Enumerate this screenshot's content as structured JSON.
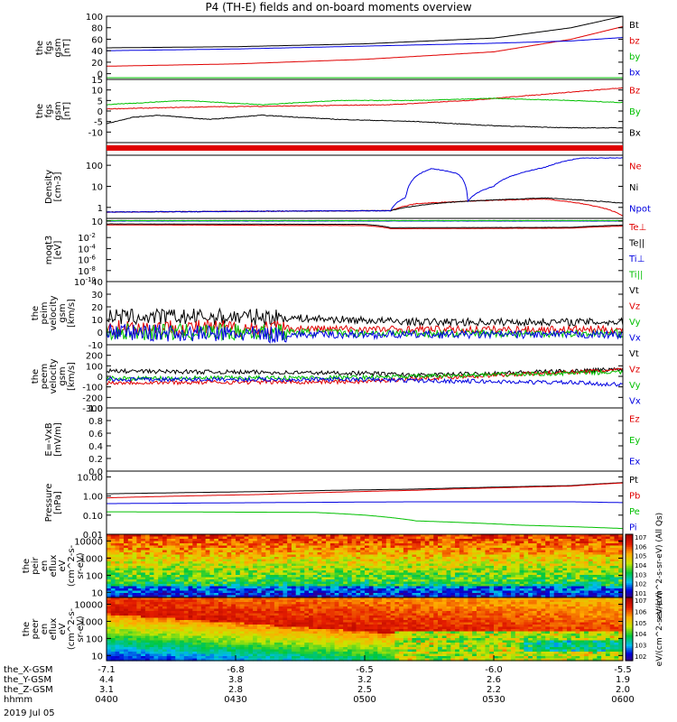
{
  "figure": {
    "title": "P4 (TH-E) fields and on-board moments overview",
    "date_label": "2019 Jul 05"
  },
  "colors": {
    "black": "#000000",
    "red": "#e00000",
    "green": "#00c000",
    "blue": "#0000e0"
  },
  "chart_data": [
    {
      "id": "fgs_gsm",
      "type": "line",
      "ylabel": [
        "the",
        "fgs",
        "gsm",
        "[nT]"
      ],
      "ylim": [
        -10,
        100
      ],
      "yticks": [
        "100",
        "80",
        "60",
        "40",
        "20",
        "0"
      ],
      "ytick_values": [
        100,
        80,
        60,
        40,
        20,
        0
      ],
      "series": [
        {
          "name": "Bt",
          "color": "black",
          "x": [
            0,
            0.25,
            0.5,
            0.75,
            0.9,
            1
          ],
          "y": [
            45,
            47,
            52,
            62,
            80,
            100
          ]
        },
        {
          "name": "bz",
          "color": "red",
          "x": [
            0,
            0.25,
            0.5,
            0.75,
            0.9,
            1
          ],
          "y": [
            13,
            17,
            25,
            38,
            60,
            82
          ]
        },
        {
          "name": "by",
          "color": "green",
          "x": [
            0,
            0.5,
            1
          ],
          "y": [
            -7,
            -7,
            -7
          ]
        },
        {
          "name": "bx",
          "color": "blue",
          "x": [
            0,
            0.25,
            0.5,
            0.75,
            0.9,
            1
          ],
          "y": [
            40,
            43,
            48,
            53,
            57,
            63
          ]
        }
      ]
    },
    {
      "id": "fgs_gsm_zoom",
      "type": "line",
      "ylabel": [
        "the",
        "fgs",
        "gsm",
        "[nT]"
      ],
      "ylim": [
        -15,
        15
      ],
      "yticks": [
        "15",
        "10",
        "5",
        "0",
        "-5",
        "-10"
      ],
      "ytick_values": [
        15,
        10,
        5,
        0,
        -5,
        -10
      ],
      "series": [
        {
          "name": "Bz",
          "color": "red",
          "x": [
            0,
            0.2,
            0.4,
            0.55,
            0.7,
            0.85,
            1
          ],
          "y": [
            1,
            2,
            2.5,
            3,
            5,
            8,
            11
          ]
        },
        {
          "name": "By",
          "color": "green",
          "x": [
            0,
            0.15,
            0.3,
            0.45,
            0.6,
            0.75,
            0.9,
            1
          ],
          "y": [
            3,
            5,
            3,
            5,
            5,
            6,
            5,
            4
          ]
        },
        {
          "name": "Bx",
          "color": "black",
          "x": [
            0,
            0.05,
            0.1,
            0.2,
            0.3,
            0.45,
            0.6,
            0.75,
            0.9,
            1
          ],
          "y": [
            -6,
            -3,
            -2,
            -4,
            -2,
            -4,
            -5,
            -7,
            -8,
            -8
          ]
        }
      ]
    },
    {
      "id": "density",
      "type": "line",
      "yscale": "log",
      "ylabel": [
        "Density",
        "[cm-3]"
      ],
      "ylim": [
        0.3,
        300
      ],
      "yticks": [
        "100",
        "10",
        "1"
      ],
      "ytick_values": [
        100,
        10,
        1
      ],
      "series": [
        {
          "name": "Ne",
          "color": "red",
          "x": [
            0,
            0.55,
            0.6,
            0.7,
            0.85,
            0.92,
            1
          ],
          "y": [
            0.6,
            0.7,
            1.5,
            2,
            2.5,
            1.5,
            0.4
          ]
        },
        {
          "name": "Ni",
          "color": "black",
          "x": [
            0,
            0.55,
            0.6,
            0.7,
            0.85,
            0.92,
            1
          ],
          "y": [
            0.6,
            0.7,
            1.2,
            2,
            2.8,
            2.2,
            1.6
          ]
        },
        {
          "name": "Npot",
          "color": "blue",
          "x": [
            0,
            0.55,
            0.58,
            0.6,
            0.63,
            0.68,
            0.7,
            0.75,
            0.8,
            0.85,
            0.92
          ],
          "y": [
            0.6,
            0.7,
            3,
            30,
            70,
            40,
            2,
            10,
            40,
            80,
            220
          ]
        }
      ]
    },
    {
      "id": "temperature",
      "type": "line",
      "yscale": "log",
      "ylabel": [
        "moqt3",
        "[eV]"
      ],
      "ylim": [
        1e-10,
        30
      ],
      "yticks": [
        "10",
        "10-2",
        "10-4",
        "10-6",
        "10-8",
        "10-10"
      ],
      "ytick_values": [
        10,
        0.01,
        0.0001,
        1e-06,
        1e-08,
        1e-10
      ],
      "series": [
        {
          "name": "Te⊥",
          "color": "red",
          "x": [
            0,
            0.5,
            0.55,
            0.9,
            1
          ],
          "y": [
            2,
            1.5,
            0.4,
            0.5,
            1.2
          ]
        },
        {
          "name": "Te||",
          "color": "black",
          "x": [
            0,
            0.5,
            0.55,
            0.9,
            1
          ],
          "y": [
            3,
            2.5,
            0.6,
            0.7,
            1.8
          ]
        },
        {
          "name": "Ti⊥",
          "color": "blue",
          "x": [
            0,
            1
          ],
          "y": [
            10,
            10
          ]
        },
        {
          "name": "Ti||",
          "color": "green",
          "x": [
            0,
            1
          ],
          "y": [
            12,
            12
          ]
        }
      ]
    },
    {
      "id": "peim_velocity",
      "type": "line",
      "ylabel": [
        "the",
        "peim",
        "velocity",
        "gsm",
        "[km/s]"
      ],
      "ylim": [
        -10,
        40
      ],
      "yticks": [
        "40",
        "30",
        "20",
        "10",
        "0",
        "-10"
      ],
      "ytick_values": [
        40,
        30,
        20,
        10,
        0,
        -10
      ],
      "series": [
        {
          "name": "Vt",
          "color": "black",
          "x": [
            0,
            0.3,
            0.6,
            1
          ],
          "y": [
            12,
            12,
            8,
            8
          ]
        },
        {
          "name": "Vz",
          "color": "red",
          "x": [
            0,
            0.3,
            0.6,
            1
          ],
          "y": [
            4,
            3,
            2,
            2
          ]
        },
        {
          "name": "Vy",
          "color": "green",
          "x": [
            0,
            0.3,
            0.6,
            1
          ],
          "y": [
            0,
            0,
            -1,
            -1
          ]
        },
        {
          "name": "Vx",
          "color": "blue",
          "x": [
            0,
            0.3,
            0.6,
            1
          ],
          "y": [
            0,
            -2,
            -2,
            -2
          ]
        }
      ]
    },
    {
      "id": "peem_velocity",
      "type": "line",
      "ylabel": [
        "the",
        "peem",
        "velocity",
        "gsm",
        "[km/s]"
      ],
      "ylim": [
        -300,
        300
      ],
      "yticks": [
        "200",
        "100",
        "0",
        "-100",
        "-200",
        "-300"
      ],
      "ytick_values": [
        200,
        100,
        0,
        -100,
        -200,
        -300
      ],
      "series": [
        {
          "name": "Vt",
          "color": "black",
          "x": [
            0,
            0.5,
            0.6,
            0.9,
            1
          ],
          "y": [
            50,
            30,
            10,
            50,
            70
          ]
        },
        {
          "name": "Vz",
          "color": "red",
          "x": [
            0,
            0.5,
            0.6,
            0.9,
            1
          ],
          "y": [
            -60,
            -50,
            -20,
            40,
            60
          ]
        },
        {
          "name": "Vy",
          "color": "green",
          "x": [
            0,
            0.5,
            0.6,
            0.9,
            1
          ],
          "y": [
            -20,
            -10,
            0,
            30,
            40
          ]
        },
        {
          "name": "Vx",
          "color": "blue",
          "x": [
            0,
            0.5,
            0.6,
            0.9,
            1
          ],
          "y": [
            -30,
            -30,
            -40,
            -60,
            -80
          ]
        }
      ]
    },
    {
      "id": "efield",
      "type": "line",
      "ylabel": [
        "E=-VxB",
        "[mV/m]"
      ],
      "ylim": [
        0,
        1
      ],
      "yticks": [
        "1.0",
        "0.8",
        "0.6",
        "0.4",
        "0.2",
        "0.0"
      ],
      "ytick_values": [
        1,
        0.8,
        0.6,
        0.4,
        0.2,
        0
      ],
      "series": [
        {
          "name": "Ez",
          "color": "red",
          "x": [],
          "y": []
        },
        {
          "name": "Ey",
          "color": "green",
          "x": [],
          "y": []
        },
        {
          "name": "Ex",
          "color": "blue",
          "x": [],
          "y": []
        }
      ]
    },
    {
      "id": "pressure",
      "type": "line",
      "yscale": "log",
      "ylabel": [
        "Pressure",
        "[nPa]"
      ],
      "ylim": [
        0.01,
        20
      ],
      "yticks": [
        "10.00",
        "1.00",
        "0.10",
        "0.01"
      ],
      "ytick_values": [
        10,
        1,
        0.1,
        0.01
      ],
      "series": [
        {
          "name": "Pt",
          "color": "black",
          "x": [
            0,
            0.3,
            0.6,
            0.9,
            1
          ],
          "y": [
            1.3,
            1.7,
            2.3,
            3.5,
            5
          ]
        },
        {
          "name": "Pb",
          "color": "red",
          "x": [
            0,
            0.3,
            0.6,
            0.9,
            1
          ],
          "y": [
            0.8,
            1.2,
            2.0,
            3.3,
            4.8
          ]
        },
        {
          "name": "Pe",
          "color": "green",
          "x": [
            0,
            0.4,
            0.5,
            0.6,
            0.7,
            0.8,
            0.9,
            1
          ],
          "y": [
            0.15,
            0.14,
            0.1,
            0.05,
            0.04,
            0.03,
            0.025,
            0.02
          ]
        },
        {
          "name": "Pi",
          "color": "blue",
          "x": [
            0,
            0.3,
            0.6,
            0.9,
            1
          ],
          "y": [
            0.4,
            0.45,
            0.5,
            0.5,
            0.45
          ]
        }
      ]
    },
    {
      "id": "peir_spectrogram",
      "type": "heatmap",
      "ylabel": [
        "the",
        "peir",
        "en",
        "eflux",
        "eV",
        "(cm^2-s-",
        "sr-eV)"
      ],
      "yscale": "log",
      "ylim": [
        5,
        25000
      ],
      "yticks": [
        "10000",
        "1000",
        "100",
        "10"
      ],
      "ytick_values": [
        10000,
        1000,
        100,
        10
      ]
    },
    {
      "id": "peer_spectrogram",
      "type": "heatmap",
      "ylabel": [
        "the",
        "peer",
        "en",
        "eflux",
        "eV",
        "(cm^2-s-",
        "sr-eV)"
      ],
      "yscale": "log",
      "ylim": [
        5,
        25000
      ],
      "yticks": [
        "10000",
        "1000",
        "100",
        "10"
      ],
      "ytick_values": [
        10000,
        1000,
        100,
        10
      ]
    }
  ],
  "colorbars": [
    {
      "label": "eV/(cm^2-s-sr-eV) (All Qs)",
      "ticks": [
        "10^7",
        "10^6",
        "10^5",
        "10^4",
        "10^3",
        "10^2",
        "10^1"
      ]
    },
    {
      "label": "eV/(cm^2-s-sr-eV)",
      "ticks": [
        "10^7",
        "10^6",
        "10^5",
        "10^4",
        "10^3",
        "10^2"
      ]
    }
  ],
  "x_axis": {
    "row_labels": [
      "the_X-GSM",
      "the_Y-GSM",
      "the_Z-GSM",
      "hhmm"
    ],
    "rows": [
      [
        "-7.1",
        "-6.8",
        "-6.5",
        "-6.0",
        "-5.5"
      ],
      [
        "4.4",
        "3.8",
        "3.2",
        "2.6",
        "1.9"
      ],
      [
        "3.1",
        "2.8",
        "2.5",
        "2.2",
        "2.0"
      ],
      [
        "0400",
        "0430",
        "0500",
        "0530",
        "0600"
      ]
    ]
  }
}
